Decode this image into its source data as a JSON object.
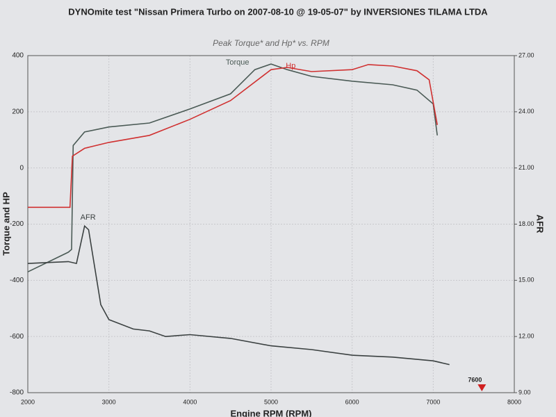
{
  "chart_data": {
    "type": "line",
    "title": "DYNOmite test \"Nissan Primera Turbo on 2007-08-10 @ 19-05-07\" by INVERSIONES TILAMA LTDA",
    "subtitle": "Peak Torque* and Hp* vs. RPM",
    "y_label": "Torque and HP",
    "y2_label": "AFR",
    "x_label": "Engine RPM (RPM)",
    "xlim": [
      2000,
      8000
    ],
    "xticks": [
      2000,
      3000,
      4000,
      5000,
      6000,
      7000,
      8000
    ],
    "ylim": [
      -800,
      400
    ],
    "yticks": [
      400,
      200,
      0,
      -200,
      -400,
      -600,
      -800
    ],
    "y2lim": [
      9,
      27
    ],
    "y2ticks": [
      {
        "value": 27,
        "label": "27.00"
      },
      {
        "value": 24,
        "label": "24.00"
      },
      {
        "value": 21,
        "label": "21.00"
      },
      {
        "value": 18,
        "label": "18.00"
      },
      {
        "value": 15,
        "label": "15.00"
      },
      {
        "value": 12,
        "label": "12.00"
      },
      {
        "value": 9,
        "label": "9.00"
      }
    ],
    "grid": true,
    "series": [
      {
        "name": "Torque",
        "color": "#4a5a55",
        "x": [
          2000,
          2500,
          2540,
          2560,
          2700,
          3000,
          3500,
          4000,
          4500,
          4800,
          5000,
          5200,
          5500,
          6000,
          6500,
          6800,
          7000,
          7050
        ],
        "values": [
          -370,
          -300,
          -290,
          80,
          128,
          146,
          160,
          210,
          264,
          350,
          370,
          350,
          326,
          309,
          296,
          277,
          228,
          116
        ]
      },
      {
        "name": "Hp",
        "color": "#d03030",
        "x": [
          2000,
          2520,
          2550,
          2700,
          3000,
          3500,
          4000,
          4500,
          5000,
          5200,
          5500,
          6000,
          6200,
          6500,
          6800,
          6950,
          7050
        ],
        "values": [
          -140,
          -140,
          42,
          70,
          91,
          116,
          173,
          240,
          350,
          358,
          343,
          350,
          368,
          363,
          346,
          314,
          153
        ]
      },
      {
        "name": "AFR",
        "color": "#3a4040",
        "axis": "y2",
        "x": [
          2000,
          2500,
          2600,
          2700,
          2750,
          2900,
          3000,
          3300,
          3500,
          3700,
          4000,
          4500,
          5000,
          5500,
          6000,
          6500,
          7000,
          7200
        ],
        "values": [
          15.9,
          16.0,
          15.9,
          17.9,
          17.7,
          13.7,
          12.9,
          12.4,
          12.3,
          12.0,
          12.1,
          11.9,
          11.5,
          11.3,
          11.0,
          10.9,
          10.7,
          10.5
        ]
      }
    ],
    "marker": {
      "x": 7600
    }
  }
}
